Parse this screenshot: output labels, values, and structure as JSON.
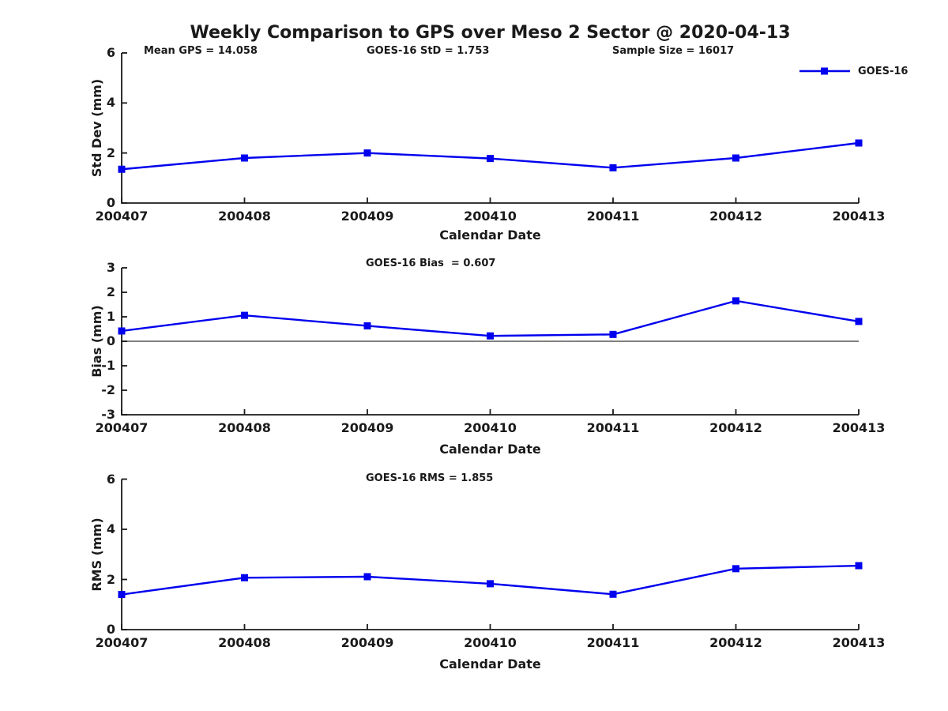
{
  "title": "Weekly Comparison to GPS over Meso 2 Sector @ 2020-04-13",
  "legend": {
    "label": "GOES-16",
    "position": "top-right",
    "marker": "square"
  },
  "colors": {
    "series": "#0000EE",
    "axis": "#1a1a1a",
    "text": "#1a1a1a",
    "zero_line": "#000000",
    "background": "#ffffff"
  },
  "chart_data": [
    {
      "type": "line",
      "ylabel": "Std Dev (mm)",
      "xlabel": "Calendar Date",
      "x": [
        "200407",
        "200408",
        "200409",
        "200410",
        "200411",
        "200412",
        "200413"
      ],
      "series": [
        {
          "name": "GOES-16",
          "marker": "square",
          "values": [
            1.35,
            1.8,
            2.0,
            1.78,
            1.41,
            1.8,
            2.4
          ]
        }
      ],
      "ylim": [
        0,
        6
      ],
      "yticks": [
        0,
        2,
        4,
        6
      ],
      "grid": false,
      "zero_line": false,
      "annotations": [
        "Mean GPS = 14.058",
        "GOES-16 StD = 1.753",
        "Sample Size = 16017"
      ]
    },
    {
      "type": "line",
      "ylabel": "Bias (mm)",
      "xlabel": "Calendar Date",
      "x": [
        "200407",
        "200408",
        "200409",
        "200410",
        "200411",
        "200412",
        "200413"
      ],
      "series": [
        {
          "name": "GOES-16",
          "marker": "square",
          "values": [
            0.42,
            1.06,
            0.63,
            0.22,
            0.28,
            1.65,
            0.81
          ]
        }
      ],
      "ylim": [
        -3,
        3
      ],
      "yticks": [
        -3,
        -2,
        -1,
        0,
        1,
        2,
        3
      ],
      "grid": false,
      "zero_line": true,
      "annotations": [
        "GOES-16 Bias  = 0.607"
      ]
    },
    {
      "type": "line",
      "ylabel": "RMS (mm)",
      "xlabel": "Calendar Date",
      "x": [
        "200407",
        "200408",
        "200409",
        "200410",
        "200411",
        "200412",
        "200413"
      ],
      "series": [
        {
          "name": "GOES-16",
          "marker": "square",
          "values": [
            1.4,
            2.07,
            2.11,
            1.83,
            1.41,
            2.43,
            2.55
          ]
        }
      ],
      "ylim": [
        0,
        6
      ],
      "yticks": [
        0,
        2,
        4,
        6
      ],
      "grid": false,
      "zero_line": false,
      "annotations": [
        "GOES-16 RMS = 1.855"
      ]
    }
  ]
}
